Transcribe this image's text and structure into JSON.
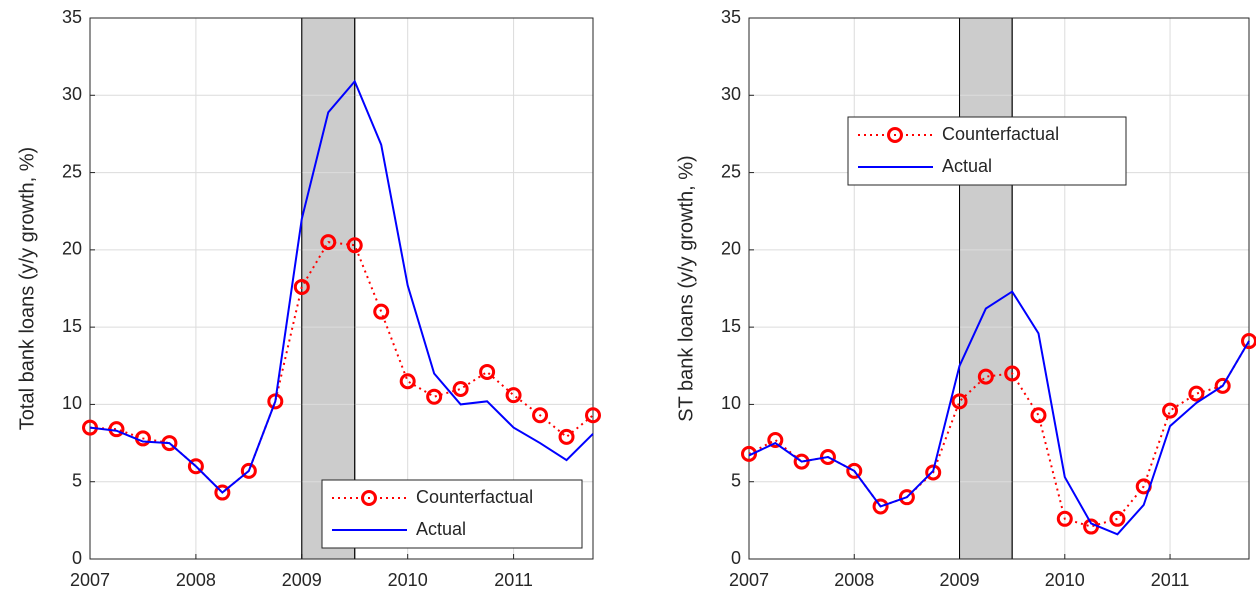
{
  "chart_data": [
    {
      "type": "line",
      "ylabel": "Total bank loans (y/y growth, %)",
      "x": [
        2007,
        2007.25,
        2007.5,
        2007.75,
        2008,
        2008.25,
        2008.5,
        2008.75,
        2009,
        2009.25,
        2009.5,
        2009.75,
        2010,
        2010.25,
        2010.5,
        2010.75,
        2011,
        2011.25,
        2011.5,
        2011.75
      ],
      "series": [
        {
          "name": "Counterfactual",
          "color": "#ff0000",
          "line_style": "dotted",
          "marker": "o",
          "values": [
            8.5,
            8.4,
            7.8,
            7.5,
            6.0,
            4.3,
            5.7,
            10.2,
            17.6,
            20.5,
            20.3,
            16.0,
            11.5,
            10.5,
            11.0,
            12.1,
            10.6,
            9.3,
            7.9,
            9.3
          ]
        },
        {
          "name": "Actual",
          "color": "#0000ff",
          "line_style": "solid",
          "values": [
            8.5,
            8.3,
            7.6,
            7.5,
            6.0,
            4.3,
            5.7,
            10.2,
            22.0,
            28.9,
            30.9,
            26.8,
            17.7,
            12.0,
            10.0,
            10.2,
            8.5,
            7.5,
            6.4,
            8.1
          ]
        }
      ],
      "xlim": [
        2007,
        2011.75
      ],
      "xticks": [
        2007,
        2008,
        2009,
        2010,
        2011
      ],
      "ylim": [
        0,
        35
      ],
      "yticks": [
        0,
        5,
        10,
        15,
        20,
        25,
        30,
        35
      ],
      "grid": true,
      "legend": "lower right",
      "shaded_region": [
        2009,
        2009.5
      ],
      "shade_color": "#cccccc"
    },
    {
      "type": "line",
      "ylabel": "ST bank loans (y/y growth, %)",
      "x": [
        2007,
        2007.25,
        2007.5,
        2007.75,
        2008,
        2008.25,
        2008.5,
        2008.75,
        2009,
        2009.25,
        2009.5,
        2009.75,
        2010,
        2010.25,
        2010.5,
        2010.75,
        2011,
        2011.25,
        2011.5,
        2011.75
      ],
      "series": [
        {
          "name": "Counterfactual",
          "color": "#ff0000",
          "line_style": "dotted",
          "marker": "o",
          "values": [
            6.8,
            7.7,
            6.3,
            6.6,
            5.7,
            3.4,
            4.0,
            5.6,
            10.2,
            11.8,
            12.0,
            9.3,
            2.6,
            2.1,
            2.6,
            4.7,
            9.6,
            10.7,
            11.2,
            14.1
          ]
        },
        {
          "name": "Actual",
          "color": "#0000ff",
          "line_style": "solid",
          "values": [
            6.7,
            7.5,
            6.3,
            6.6,
            5.7,
            3.4,
            4.0,
            5.7,
            12.5,
            16.2,
            17.3,
            14.6,
            5.3,
            2.3,
            1.6,
            3.5,
            8.6,
            10.1,
            11.2,
            14.1
          ]
        }
      ],
      "xlim": [
        2007,
        2011.75
      ],
      "xticks": [
        2007,
        2008,
        2009,
        2010,
        2011
      ],
      "ylim": [
        0,
        35
      ],
      "yticks": [
        0,
        5,
        10,
        15,
        20,
        25,
        30,
        35
      ],
      "grid": true,
      "legend": "upper left",
      "shaded_region": [
        2009,
        2009.5
      ],
      "shade_color": "#cccccc"
    }
  ]
}
